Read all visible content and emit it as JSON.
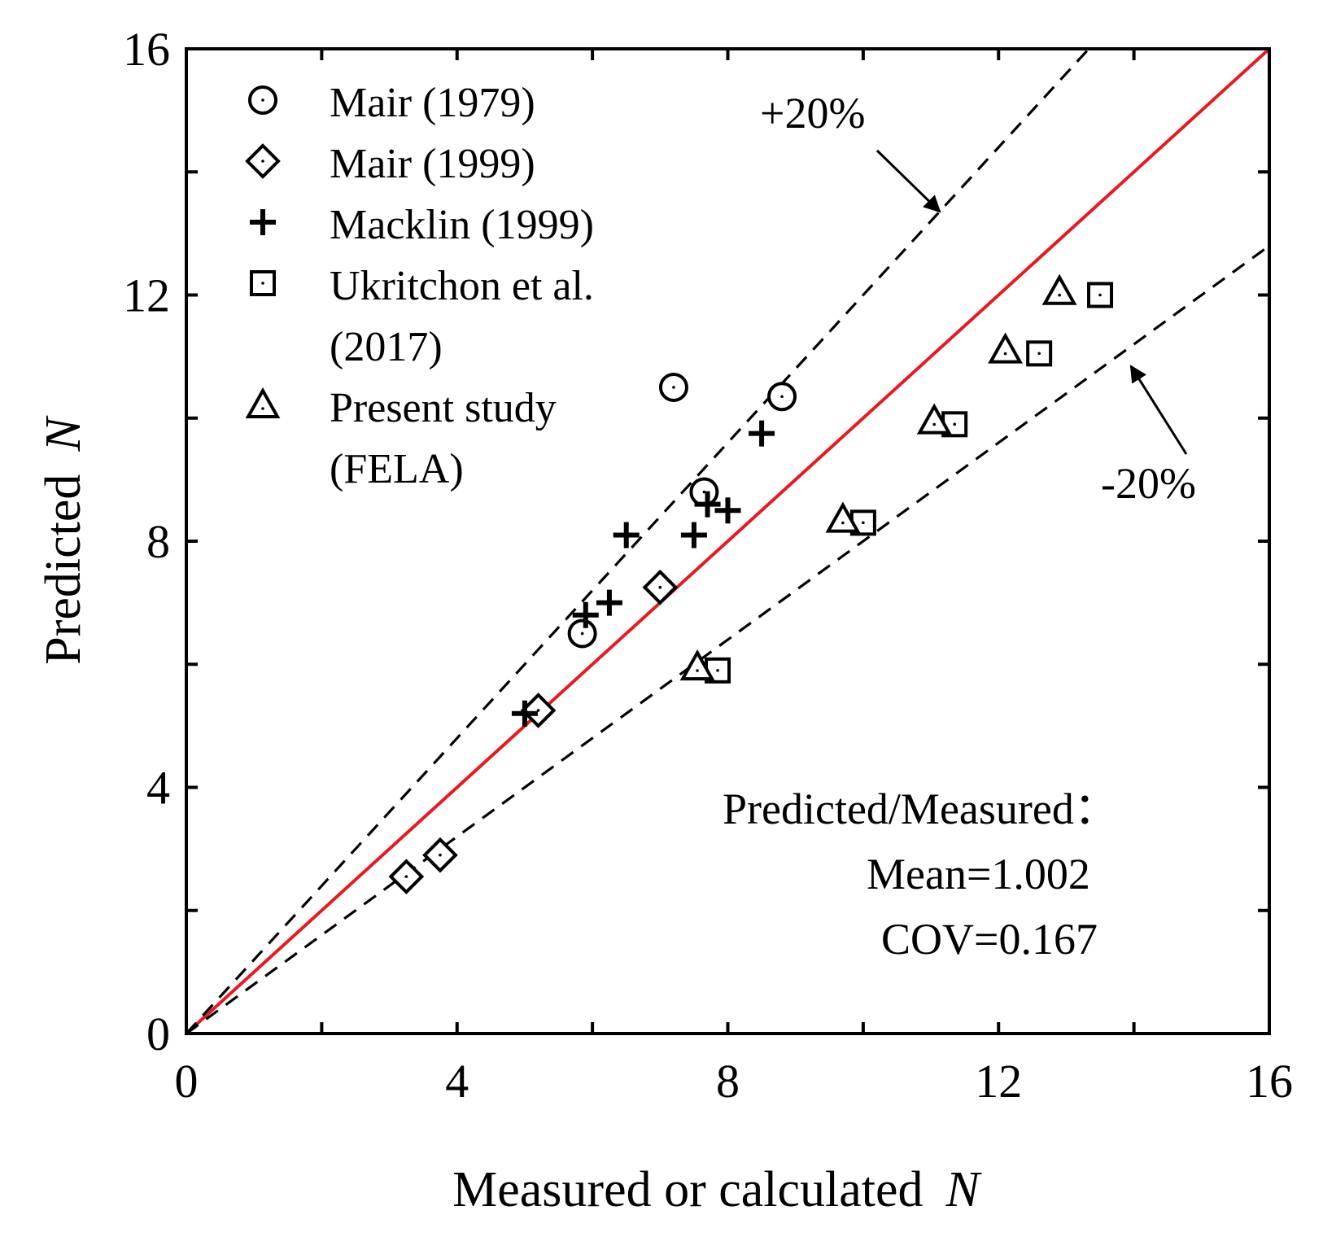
{
  "chart_data": {
    "type": "scatter",
    "xlabel": "Measured or calculated",
    "xlabel_var": "N",
    "ylabel": "Predicted",
    "ylabel_var": "N",
    "xlim": [
      0,
      16
    ],
    "ylim": [
      0,
      16
    ],
    "xticks": [
      "0",
      "4",
      "8",
      "12",
      "16"
    ],
    "yticks": [
      "0",
      "4",
      "8",
      "12",
      "16"
    ],
    "legend_position": "top-left",
    "series": [
      {
        "name": "Mair (1979)",
        "legend": [
          "Mair (1979)"
        ],
        "marker": "circle",
        "x": [
          5.85,
          7.2,
          7.65,
          8.8
        ],
        "y": [
          6.5,
          10.5,
          8.8,
          10.35
        ]
      },
      {
        "name": "Mair (1999)",
        "legend": [
          "Mair (1999)"
        ],
        "marker": "diamond",
        "x": [
          3.25,
          3.75,
          5.2,
          7.0
        ],
        "y": [
          2.55,
          2.9,
          5.25,
          7.25
        ]
      },
      {
        "name": "Macklin (1999)",
        "legend": [
          "Macklin (1999)"
        ],
        "marker": "plus",
        "x": [
          5.0,
          5.9,
          6.25,
          6.5,
          7.5,
          7.7,
          8.0,
          8.5
        ],
        "y": [
          5.2,
          6.8,
          7.0,
          8.1,
          8.1,
          8.6,
          8.5,
          9.75
        ]
      },
      {
        "name": "Ukritchon et al. (2017)",
        "legend": [
          "Ukritchon et al.",
          "(2017)"
        ],
        "marker": "square",
        "x": [
          7.85,
          10.0,
          11.35,
          12.6,
          13.5
        ],
        "y": [
          5.9,
          8.3,
          9.9,
          11.05,
          12.0
        ]
      },
      {
        "name": "Present study (FELA)",
        "legend": [
          "Present study",
          "(FELA)"
        ],
        "marker": "triangle",
        "x": [
          7.55,
          9.7,
          11.05,
          12.1,
          12.9
        ],
        "y": [
          5.95,
          8.35,
          9.95,
          11.1,
          12.05
        ]
      }
    ],
    "reference_lines": [
      {
        "name": "1:1 line",
        "slope": 1.0,
        "color": "#e8191f",
        "style": "solid"
      },
      {
        "name": "+20%",
        "slope": 1.2,
        "color": "#000000",
        "style": "dashed"
      },
      {
        "name": "-20%",
        "slope": 0.8,
        "color": "#000000",
        "style": "dashed"
      }
    ],
    "annotations": {
      "plus20": "+20%",
      "minus20": "-20%"
    },
    "stats": {
      "heading": "Predicted/Measured：",
      "mean": "Mean=1.002",
      "cov": "COV=0.167"
    }
  }
}
